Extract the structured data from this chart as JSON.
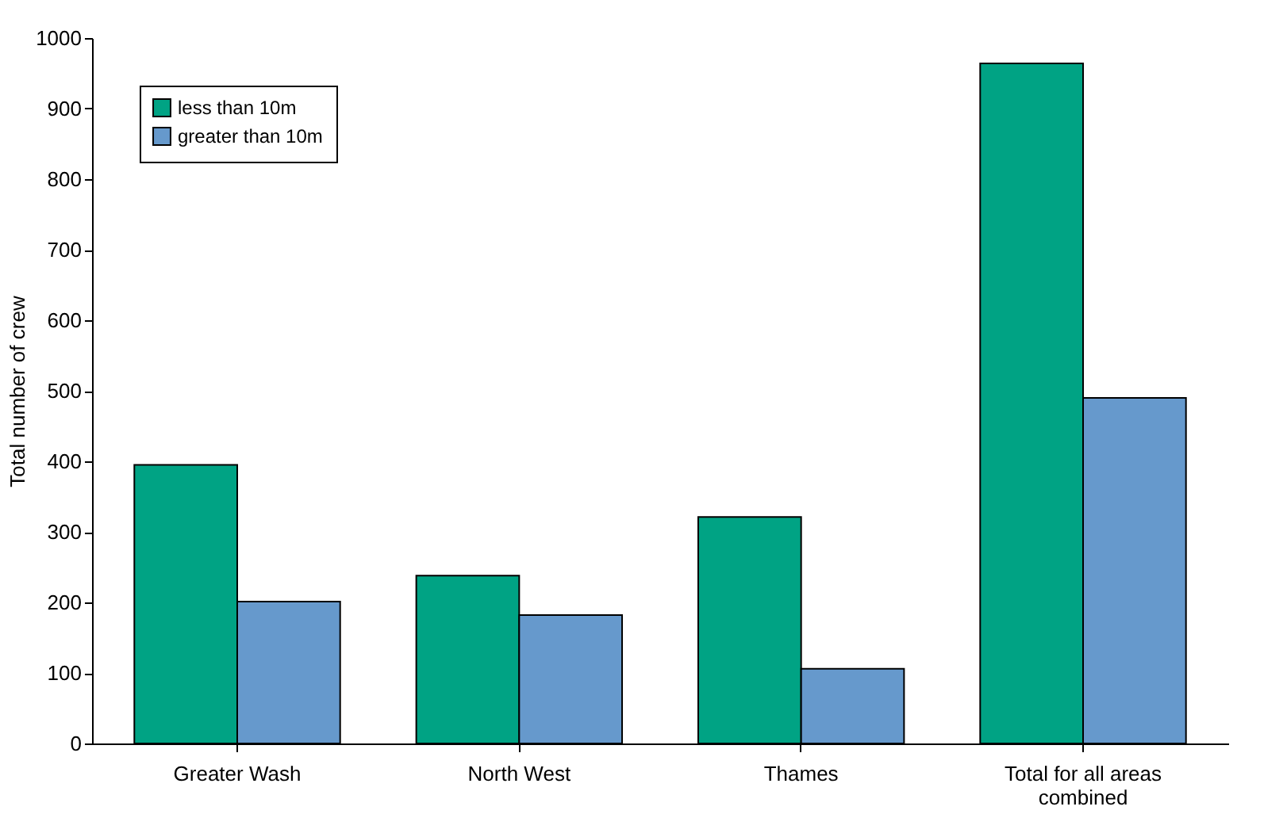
{
  "chart_data": {
    "type": "bar",
    "ylabel": "Total number of crew",
    "categories": [
      "Greater Wash",
      "North West",
      "Thames",
      "Total for all areas combined"
    ],
    "series": [
      {
        "name": "less than 10m",
        "color": "#00a384",
        "values": [
          395,
          238,
          321,
          964
        ]
      },
      {
        "name": "greater than 10m",
        "color": "#6699cc",
        "values": [
          201,
          182,
          106,
          490
        ]
      }
    ],
    "ylim": [
      0,
      1000
    ],
    "yticks": [
      0,
      100,
      200,
      300,
      400,
      500,
      600,
      700,
      800,
      900,
      1000
    ],
    "grid": false,
    "legend": "top left"
  }
}
